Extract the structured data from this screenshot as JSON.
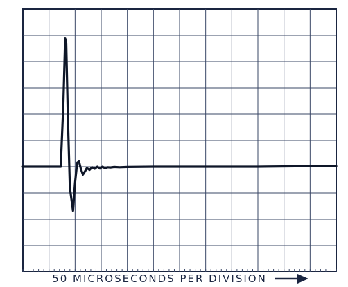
{
  "chart_data": {
    "type": "line",
    "title": "",
    "xlabel": "50 MICROSECONDS PER DIVISION",
    "ylabel": "",
    "x_divisions": 12,
    "y_divisions": 10,
    "grid": true,
    "colors": {
      "grid": "#3a4766",
      "frame": "#1a2540",
      "trace": "#0e1628",
      "background": "#ffffff"
    },
    "series": [
      {
        "x": [
          0.0,
          1.45,
          1.55,
          1.62,
          1.66,
          1.72,
          1.8,
          1.92,
          2.0,
          2.08,
          2.15,
          2.22,
          2.3,
          2.38,
          2.45,
          2.55,
          2.65,
          2.75,
          2.85,
          2.95,
          3.05,
          3.15,
          3.25,
          3.35,
          3.5,
          3.7,
          4.0,
          5.0,
          7.0,
          9.0,
          11.0,
          12.0
        ],
        "y": [
          0.0,
          0.0,
          2.4,
          4.88,
          4.7,
          2.0,
          -0.8,
          -1.68,
          -0.6,
          0.15,
          0.2,
          -0.08,
          -0.3,
          -0.18,
          -0.05,
          -0.12,
          -0.02,
          -0.08,
          0.0,
          -0.07,
          0.0,
          -0.06,
          -0.02,
          -0.03,
          -0.01,
          -0.02,
          -0.01,
          0.0,
          0.0,
          0.0,
          0.02,
          0.02
        ]
      }
    ]
  }
}
